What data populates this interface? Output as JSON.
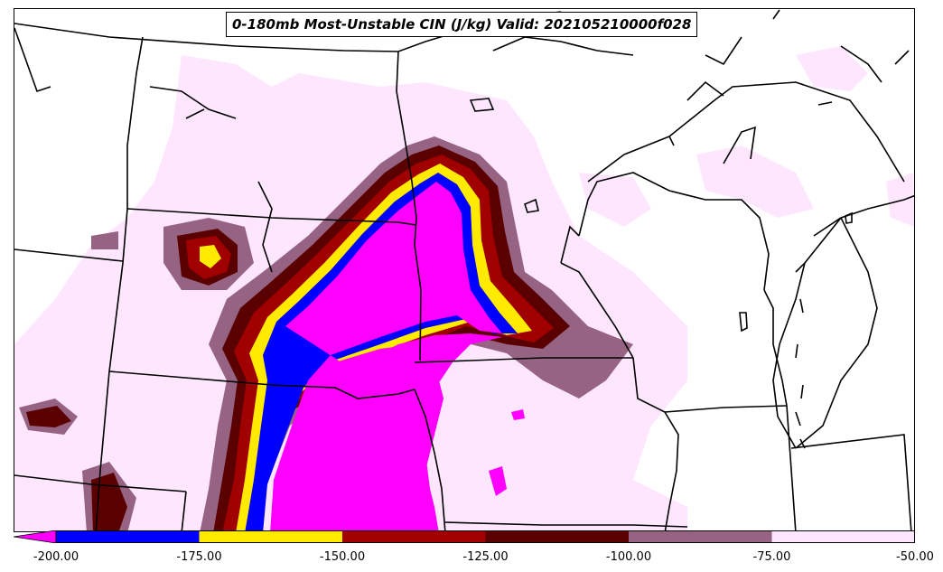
{
  "title": "0-180mb Most-Unstable CIN (J/kg) Valid: 202105210000f028",
  "colorbar": {
    "min": -200,
    "max": -50,
    "ticks": [
      "-200.00",
      "-175.00",
      "-150.00",
      "-125.00",
      "-100.00",
      "-75.00",
      "-50.00"
    ],
    "tick_values": [
      -200,
      -175,
      -150,
      -125,
      -100,
      -75,
      -50
    ],
    "bins": [
      {
        "from": -200,
        "to": -175,
        "color": "#0000ff"
      },
      {
        "from": -175,
        "to": -150,
        "color": "#ffea00"
      },
      {
        "from": -150,
        "to": -125,
        "color": "#a00000"
      },
      {
        "from": -125,
        "to": -100,
        "color": "#5a0000"
      },
      {
        "from": -100,
        "to": -75,
        "color": "#966482"
      },
      {
        "from": -75,
        "to": -50,
        "color": "#ffe6ff"
      }
    ],
    "extend_min_color": "#ff00ff"
  },
  "colors": {
    "below_min": "#ff00ff",
    "blue": "#0000ff",
    "yellow": "#ffea00",
    "red": "#a00000",
    "dark_red": "#5a0000",
    "mauve": "#966482",
    "light_pink": "#ffe6ff",
    "boundaries": "#000000"
  }
}
